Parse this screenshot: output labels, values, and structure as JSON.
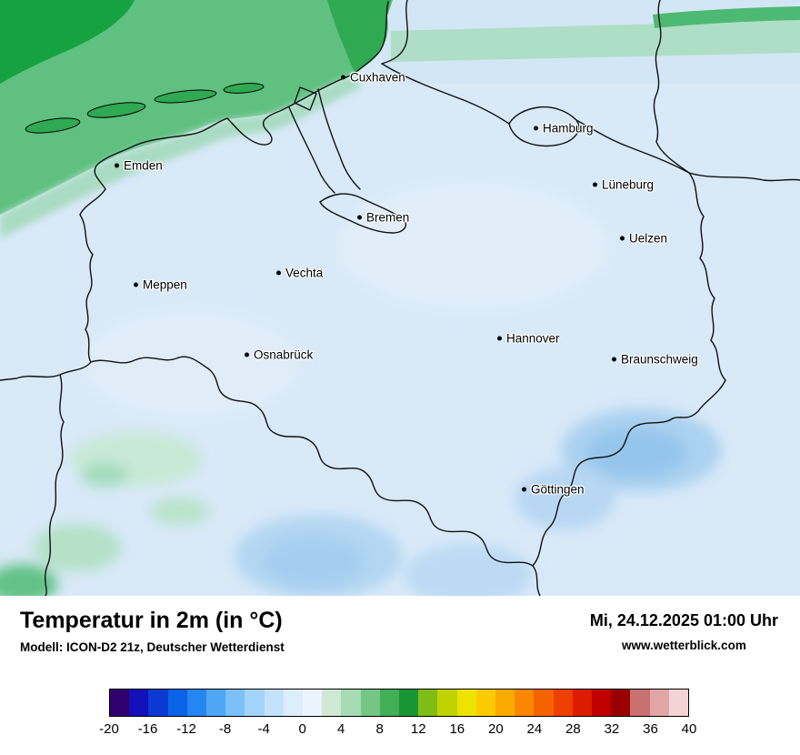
{
  "map": {
    "cities": [
      {
        "label": "Cuxhaven"
      },
      {
        "label": "Hamburg"
      },
      {
        "label": "Emden"
      },
      {
        "label": "Lüneburg"
      },
      {
        "label": "Bremen"
      },
      {
        "label": "Uelzen"
      },
      {
        "label": "Vechta"
      },
      {
        "label": "Meppen"
      },
      {
        "label": "Hannover"
      },
      {
        "label": "Osnabrück"
      },
      {
        "label": "Braunschweig"
      },
      {
        "label": "Göttingen"
      }
    ]
  },
  "footer": {
    "title": "Temperatur in 2m (in °C)",
    "datetime": "Mi, 24.12.2025 01:00 Uhr",
    "model": "Modell: ICON-D2 21z, Deutscher Wetterdienst",
    "website": "www.wetterblick.com"
  },
  "legend": {
    "min": -20,
    "max": 40,
    "degrees_per_segment": 2,
    "ticks": [
      "-20",
      "-16",
      "-12",
      "-8",
      "-4",
      "0",
      "4",
      "8",
      "12",
      "16",
      "20",
      "24",
      "28",
      "32",
      "36",
      "40"
    ],
    "colors": [
      "#30006e",
      "#1410b9",
      "#0a3ad2",
      "#0a62e6",
      "#2486f0",
      "#4ea6f5",
      "#7cc0f8",
      "#a4d4fa",
      "#c4e2fb",
      "#dcedfc",
      "#ebf4fd",
      "#cfe9d5",
      "#a6dab1",
      "#74c684",
      "#42ae55",
      "#189636",
      "#7ebd14",
      "#c0d200",
      "#ece400",
      "#fcca00",
      "#fbaa00",
      "#f98700",
      "#f56300",
      "#ee4000",
      "#dc1c00",
      "#c00000",
      "#980000",
      "#c97070",
      "#e2a5a5",
      "#f3d3d3"
    ]
  }
}
